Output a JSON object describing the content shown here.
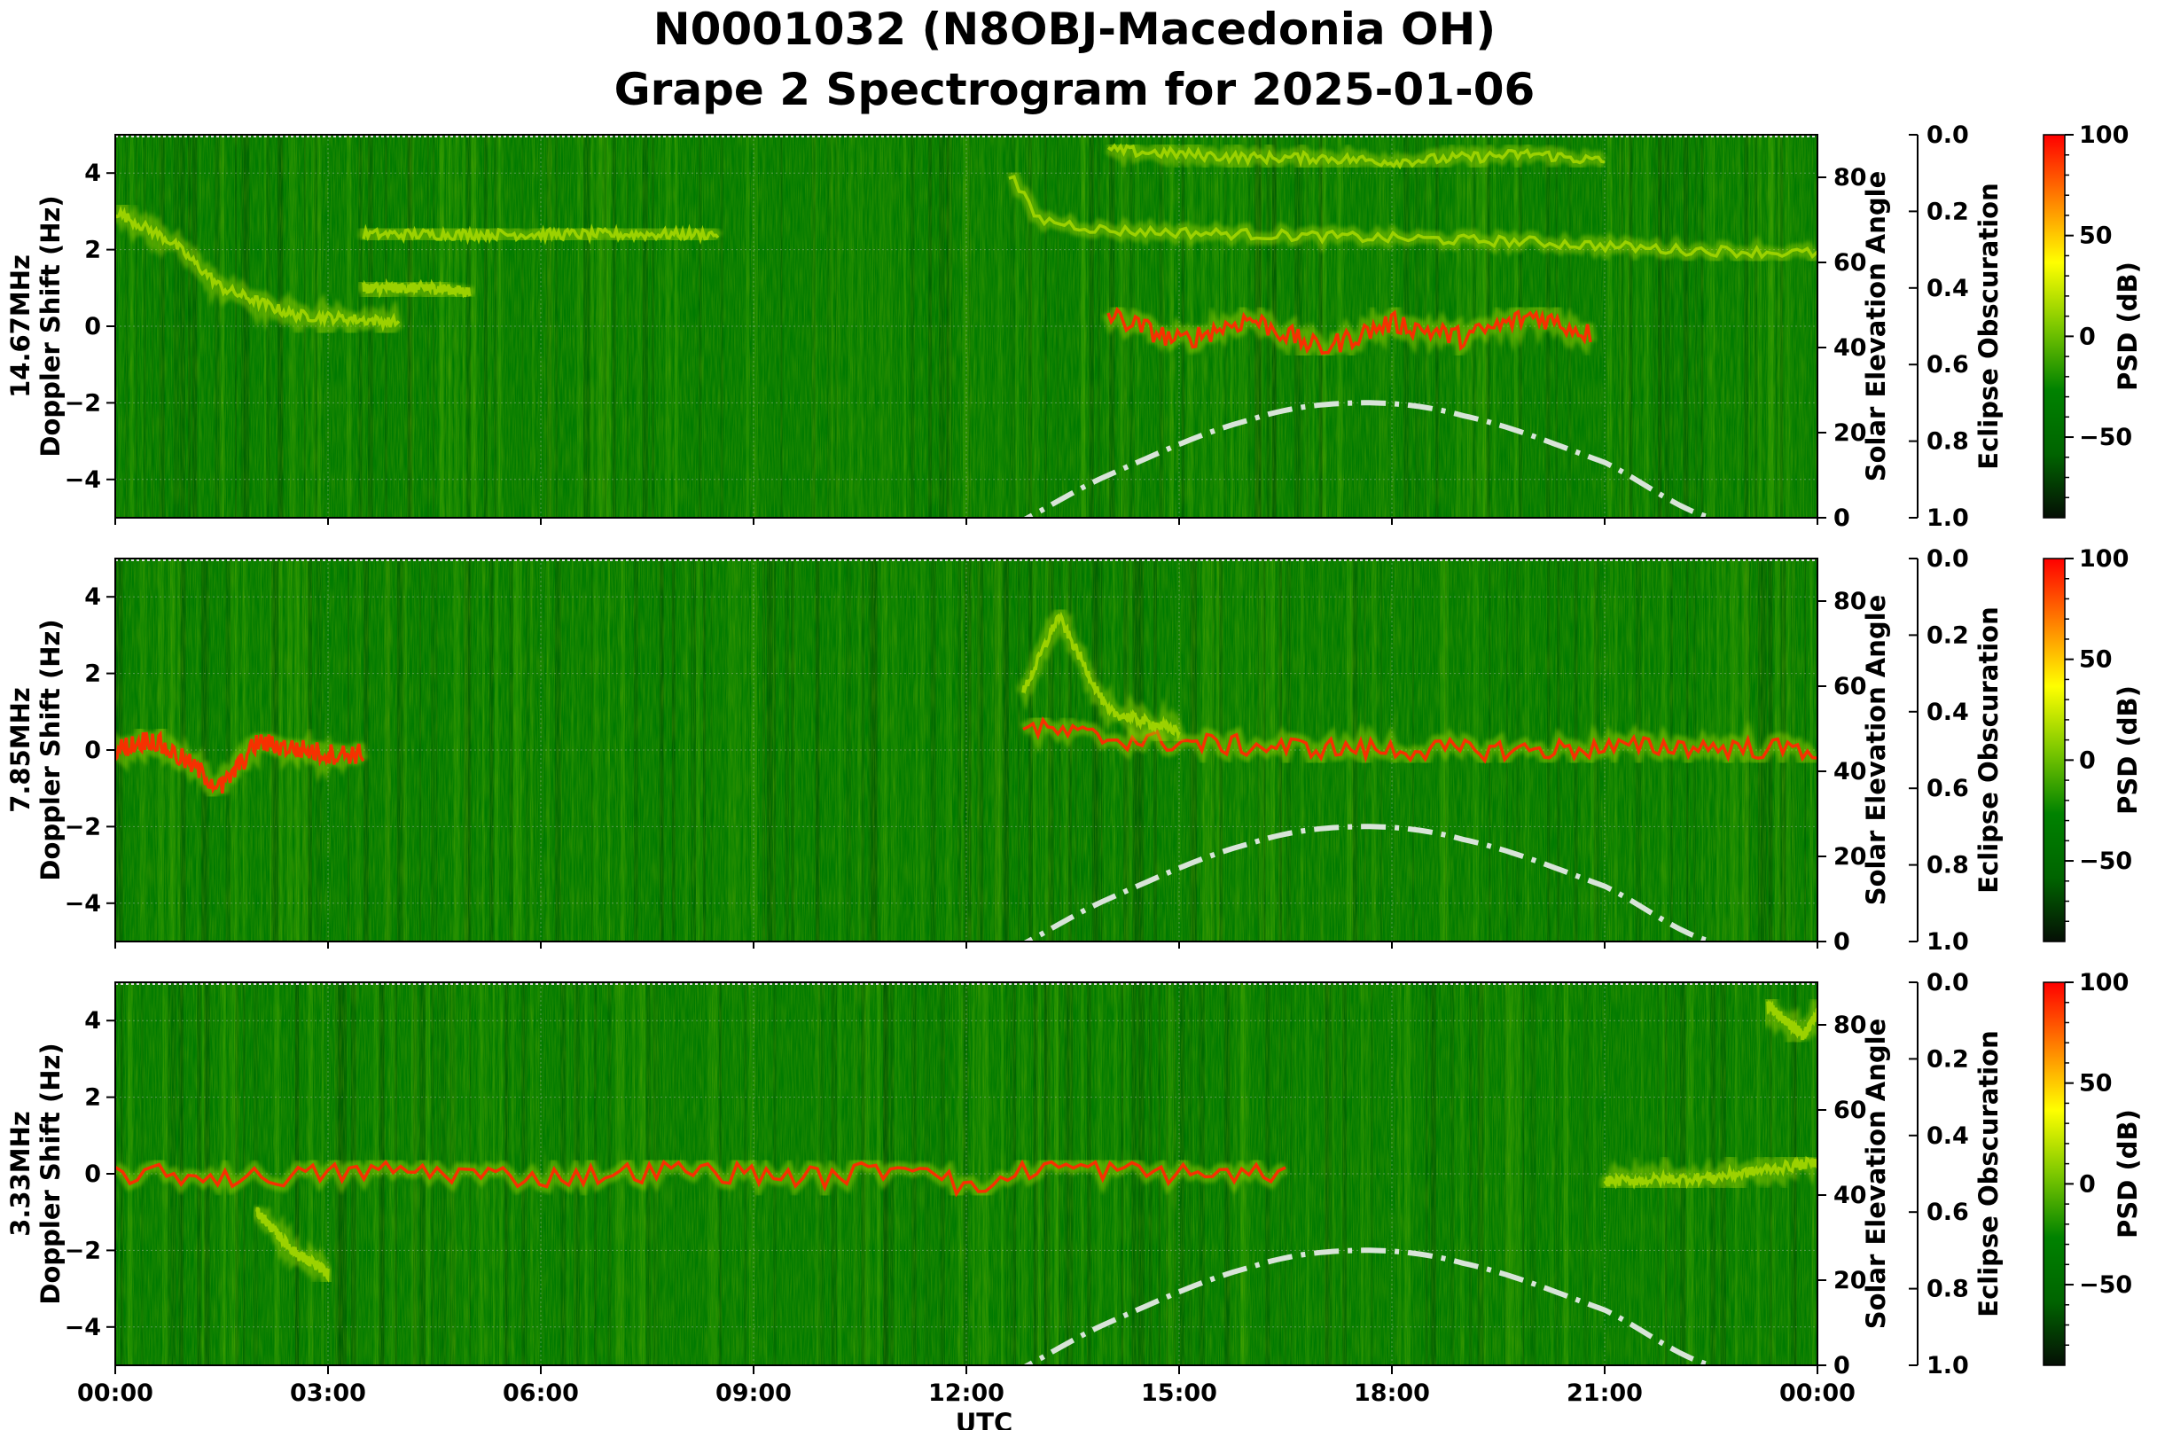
{
  "title_line1": "N0001032 (N8OBJ-Macedonia OH)",
  "title_line2": "Grape 2 Spectrogram for 2025-01-06",
  "colors": {
    "background": "#007a00",
    "noise_low": "#004f00",
    "noise_mid": "#2f9c00",
    "trace_mid": "#9fd400",
    "trace_high": "#f2ef00",
    "trace_peak": "#ff2a00",
    "solar_curve": "#d8e4d8"
  },
  "colorbar": {
    "label": "PSD (dB)",
    "ticks": [
      "100",
      "50",
      "0",
      "−50"
    ],
    "tick_values": [
      100,
      50,
      0,
      -50
    ],
    "range": [
      -90,
      100
    ],
    "colormap": [
      "#050f05",
      "#006400",
      "#008200",
      "#7dc800",
      "#ffff00",
      "#ff8000",
      "#ff0000"
    ]
  },
  "eclipse_axis": {
    "label": "Eclipse Obscuration",
    "ticks": [
      "0.0",
      "0.2",
      "0.4",
      "0.6",
      "0.8",
      "1.0"
    ]
  },
  "chart_data": [
    {
      "type": "heatmap",
      "panel": "14.67MHz",
      "ylabel": "14.67MHz\nDoppler Shift (Hz)",
      "ylabel_line1": "14.67MHz",
      "ylabel_line2": "Doppler Shift (Hz)",
      "ylabel_right": "Solar Elevation Angle",
      "xlim": [
        0,
        24
      ],
      "ylim": [
        -5,
        5
      ],
      "yticks": [
        "4",
        "2",
        "0",
        "−2",
        "−4"
      ],
      "y2lim": [
        0,
        90
      ],
      "y2ticks": [
        "80",
        "60",
        "40",
        "20",
        "0"
      ],
      "traces": [
        {
          "x": [
            0,
            0.8,
            1.5,
            2.5,
            4.0
          ],
          "y": [
            3.0,
            2.2,
            1.0,
            0.3,
            0.1
          ],
          "level": 0.55
        },
        {
          "x": [
            3.5,
            4.5,
            5.5,
            6.5,
            7.5,
            8.5
          ],
          "y": [
            2.4,
            2.4,
            2.4,
            2.4,
            2.4,
            2.4
          ],
          "level": 0.5
        },
        {
          "x": [
            3.5,
            4.5,
            5.0
          ],
          "y": [
            1.0,
            1.0,
            0.9
          ],
          "level": 0.45
        },
        {
          "x": [
            12.6,
            13.0,
            14.0,
            16.0,
            18.0,
            20.0,
            22.0,
            24.0
          ],
          "y": [
            4.0,
            2.8,
            2.5,
            2.4,
            2.3,
            2.2,
            2.0,
            1.9
          ],
          "level": 0.7
        },
        {
          "x": [
            14.0,
            15.0,
            16.0,
            17.0,
            18.0,
            19.0,
            20.0,
            21.0
          ],
          "y": [
            4.6,
            4.5,
            4.4,
            4.4,
            4.3,
            4.4,
            4.5,
            4.3
          ],
          "level": 0.6
        },
        {
          "x": [
            14.0,
            15.0,
            16.0,
            17.0,
            18.0,
            19.0,
            20.0,
            20.8
          ],
          "y": [
            0.3,
            -0.4,
            0.2,
            -0.6,
            0.1,
            -0.3,
            0.3,
            -0.2
          ],
          "level": 0.9
        }
      ],
      "solar_elevation": {
        "x": [
          12.0,
          14.0,
          16.0,
          17.5,
          19.0,
          21.0,
          22.5
        ],
        "y": [
          -6,
          10,
          23,
          27,
          24,
          13,
          0
        ]
      }
    },
    {
      "type": "heatmap",
      "panel": "7.85MHz",
      "ylabel": "7.85MHz\nDoppler Shift (Hz)",
      "ylabel_line1": "7.85MHz",
      "ylabel_line2": "Doppler Shift (Hz)",
      "ylabel_right": "Solar Elevation Angle",
      "xlim": [
        0,
        24
      ],
      "ylim": [
        -5,
        5
      ],
      "yticks": [
        "4",
        "2",
        "0",
        "−2",
        "−4"
      ],
      "y2lim": [
        0,
        90
      ],
      "y2ticks": [
        "80",
        "60",
        "40",
        "20",
        "0"
      ],
      "traces": [
        {
          "x": [
            0,
            0.5,
            1.0,
            1.5,
            2.0,
            3.0,
            3.5
          ],
          "y": [
            0.0,
            0.3,
            -0.3,
            -1.0,
            0.2,
            -0.1,
            -0.1
          ],
          "level": 0.9
        },
        {
          "x": [
            12.8,
            14.0,
            16.0,
            18.0,
            20.0,
            22.0,
            24.0
          ],
          "y": [
            0.6,
            0.3,
            0.1,
            0.0,
            0.0,
            0.1,
            0.0
          ],
          "level": 0.95
        },
        {
          "x": [
            12.8,
            13.3,
            14.0,
            15.0
          ],
          "y": [
            1.5,
            3.5,
            1.0,
            0.5
          ],
          "level": 0.6
        }
      ],
      "solar_elevation": {
        "x": [
          12.0,
          14.0,
          16.0,
          17.5,
          19.0,
          21.0,
          22.5
        ],
        "y": [
          -6,
          10,
          23,
          27,
          24,
          13,
          0
        ]
      }
    },
    {
      "type": "heatmap",
      "panel": "3.33MHz",
      "ylabel": "3.33MHz\nDoppler Shift (Hz)",
      "ylabel_line1": "3.33MHz",
      "ylabel_line2": "Doppler Shift (Hz)",
      "ylabel_right": "Solar Elevation Angle",
      "xlabel": "UTC",
      "xlim": [
        0,
        24
      ],
      "xticks": [
        "00:00",
        "03:00",
        "06:00",
        "09:00",
        "12:00",
        "15:00",
        "18:00",
        "21:00",
        "00:00"
      ],
      "ylim": [
        -5,
        5
      ],
      "yticks": [
        "4",
        "2",
        "0",
        "−2",
        "−4"
      ],
      "y2lim": [
        0,
        90
      ],
      "y2ticks": [
        "80",
        "60",
        "40",
        "20",
        "0"
      ],
      "traces": [
        {
          "x": [
            0,
            2.0,
            4.0,
            6.0,
            8.0,
            10.0,
            11.5,
            12.0,
            13.0,
            15.0,
            16.5
          ],
          "y": [
            0.0,
            -0.1,
            0.1,
            -0.1,
            0.1,
            -0.1,
            0.3,
            -0.5,
            0.2,
            0.0,
            0.0
          ],
          "level": 0.95
        },
        {
          "x": [
            2.0,
            2.5,
            3.0
          ],
          "y": [
            -1.0,
            -2.0,
            -2.6
          ],
          "level": 0.6
        },
        {
          "x": [
            21.0,
            22.5,
            24.0
          ],
          "y": [
            -0.2,
            -0.1,
            0.3
          ],
          "level": 0.55
        },
        {
          "x": [
            23.3,
            23.8,
            24.0
          ],
          "y": [
            4.4,
            3.6,
            4.2
          ],
          "level": 0.55
        }
      ],
      "solar_elevation": {
        "x": [
          12.0,
          14.0,
          16.0,
          17.5,
          19.0,
          21.0,
          22.5
        ],
        "y": [
          -6,
          10,
          23,
          27,
          24,
          13,
          0
        ]
      }
    }
  ]
}
